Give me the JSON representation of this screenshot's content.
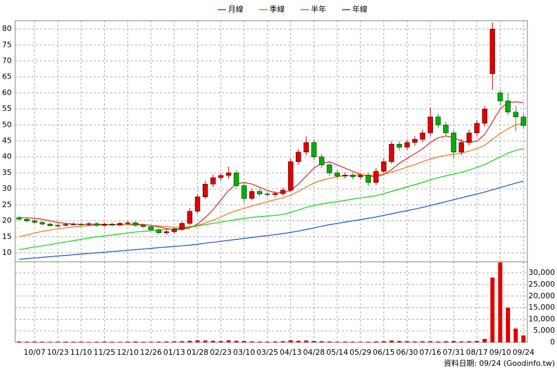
{
  "chart_data": [
    {
      "type": "candlestick",
      "categories": [
        null,
        null,
        "10/07",
        null,
        null,
        "10/23",
        null,
        null,
        "11/10",
        null,
        null,
        "11/25",
        null,
        null,
        "12/10",
        null,
        null,
        "12/26",
        null,
        null,
        "01/13",
        null,
        null,
        "01/28",
        null,
        null,
        "02/23",
        null,
        null,
        "03/10",
        null,
        null,
        "03/25",
        null,
        null,
        "04/13",
        null,
        null,
        "04/28",
        null,
        null,
        "05/14",
        null,
        null,
        "05/29",
        null,
        null,
        "06/15",
        null,
        null,
        "06/30",
        null,
        null,
        "07/16",
        null,
        null,
        "07/31",
        null,
        null,
        "08/17",
        null,
        null,
        "09/10",
        null,
        null,
        "09/24"
      ],
      "open": [
        21,
        20.5,
        20,
        19.5,
        19,
        18.5,
        18.6,
        18.9,
        19,
        18.8,
        19.1,
        18.6,
        19,
        18.7,
        19.2,
        19.4,
        18.6,
        18.2,
        17.2,
        16.3,
        16.6,
        17.4,
        19.2,
        23,
        27.5,
        31.5,
        33.5,
        34.2,
        35,
        31,
        27,
        29.2,
        28.4,
        28.2,
        28.5,
        29.6,
        38.5,
        41.5,
        44.5,
        40,
        37.5,
        35,
        34,
        34.3,
        33.8,
        34.2,
        32,
        35.5,
        38.5,
        44,
        43,
        44.5,
        45.5,
        47.5,
        52.5,
        50,
        47.5,
        41.5,
        44.5,
        47.5,
        50.5,
        66,
        60,
        57.5,
        54,
        52.5
      ],
      "high": [
        21.5,
        21,
        20.5,
        20,
        19.5,
        19.1,
        19.4,
        19.5,
        19.5,
        19.6,
        19.6,
        19.5,
        19.5,
        19.7,
        20,
        19.9,
        19.1,
        18.7,
        17.7,
        17.1,
        18,
        19.8,
        24,
        28.5,
        32.5,
        34.5,
        35,
        37,
        35.8,
        31.8,
        30,
        30,
        29.2,
        29.3,
        30.4,
        39.5,
        42.5,
        46.5,
        45.5,
        41,
        38.5,
        36,
        35.2,
        35.2,
        35,
        35,
        36.5,
        39.5,
        45,
        45,
        45.5,
        46.5,
        48.5,
        55.5,
        53.5,
        51,
        48.5,
        45.5,
        48.5,
        51.5,
        56,
        82,
        61,
        60,
        56,
        53.5
      ],
      "low": [
        20.2,
        19.6,
        19.1,
        18.6,
        18.1,
        18.1,
        18.2,
        18.5,
        18.4,
        18.4,
        18.2,
        18.2,
        18.3,
        18.3,
        18.8,
        18.2,
        17.8,
        16.8,
        15.8,
        15.7,
        16.1,
        16.9,
        18.6,
        22.2,
        26.8,
        30.5,
        32.5,
        33.2,
        30.2,
        25.8,
        26.5,
        27.6,
        27.4,
        27.4,
        27.8,
        29,
        37.5,
        40.5,
        39,
        36.5,
        34,
        33.2,
        33.2,
        33,
        33,
        30.8,
        31.2,
        34.8,
        37.8,
        42,
        42,
        43.5,
        44.5,
        46.5,
        49,
        46.5,
        39.5,
        40.5,
        43.5,
        46.5,
        49.5,
        61,
        56,
        53,
        48,
        49
      ],
      "close": [
        20.5,
        20,
        19.5,
        19,
        18.5,
        18.6,
        18.9,
        19,
        18.8,
        19.1,
        18.6,
        19,
        18.7,
        19.2,
        19.4,
        18.6,
        18.2,
        17.2,
        16.3,
        16.6,
        17.4,
        19.2,
        23,
        27.5,
        31.5,
        33.5,
        34.2,
        35,
        31,
        27,
        29.2,
        28.4,
        28.2,
        28.5,
        29.6,
        38.5,
        41.5,
        44.5,
        40,
        37.5,
        35,
        34,
        34.3,
        33.8,
        34.2,
        32,
        35.5,
        38.5,
        44,
        43,
        44.5,
        45.5,
        47.5,
        52.5,
        50,
        47.5,
        41.5,
        44.5,
        47.5,
        50.5,
        55,
        80,
        57.5,
        54,
        52.5,
        49.8
      ],
      "up_color": "#e00000",
      "down_color": "#00b000",
      "series": [
        {
          "name": "月線",
          "color": "#e02020",
          "values": [
            21,
            21,
            20.8,
            20.5,
            20,
            19.5,
            19.2,
            19,
            18.9,
            18.9,
            18.9,
            18.9,
            18.8,
            18.8,
            18.9,
            19,
            18.9,
            18.6,
            18.1,
            17.6,
            17.3,
            17.3,
            17.8,
            19,
            21,
            23.5,
            26.5,
            29.5,
            31.5,
            32,
            31.5,
            30.5,
            29.5,
            28.8,
            28.7,
            29.5,
            31.5,
            34,
            36.5,
            38,
            38.5,
            37.5,
            36.5,
            35.5,
            34.5,
            34,
            33.8,
            34.5,
            36,
            38,
            39.5,
            41,
            42.5,
            44.5,
            46,
            46.5,
            46,
            45,
            44.5,
            45,
            47,
            51,
            55,
            57,
            57.2,
            57
          ]
        },
        {
          "name": "季線",
          "color": "#f07010",
          "values": [
            15,
            15.6,
            16.2,
            16.7,
            17.1,
            17.5,
            17.8,
            18.1,
            18.3,
            18.5,
            18.6,
            18.7,
            18.7,
            18.8,
            18.8,
            18.8,
            18.7,
            18.6,
            18.4,
            18.2,
            18,
            18,
            18.2,
            18.6,
            19.3,
            20.2,
            21.2,
            22.3,
            23.2,
            23.9,
            24.6,
            25.3,
            26,
            26.6,
            27.2,
            28,
            29.2,
            30.6,
            31.8,
            32.7,
            33.3,
            33.8,
            34.1,
            34.3,
            34.4,
            34.3,
            34.3,
            34.6,
            35.2,
            36,
            36.8,
            37.6,
            38.5,
            39.3,
            40,
            40.5,
            40.8,
            41.2,
            41.8,
            42.6,
            43.6,
            45.5,
            47.3,
            48.8,
            50,
            50.5
          ]
        },
        {
          "name": "半年",
          "color": "#10d010",
          "values": [
            11,
            11.4,
            11.8,
            12.2,
            12.6,
            13,
            13.4,
            13.8,
            14.2,
            14.6,
            15,
            15.3,
            15.6,
            15.9,
            16.2,
            16.5,
            16.7,
            16.9,
            17.1,
            17.3,
            17.5,
            17.7,
            18,
            18.4,
            18.8,
            19.2,
            19.6,
            20,
            20.4,
            20.8,
            21.1,
            21.3,
            21.5,
            21.7,
            22,
            22.6,
            23.4,
            24.2,
            24.8,
            25.3,
            25.7,
            26,
            26.4,
            26.8,
            27.2,
            27.5,
            27.9,
            28.5,
            29.2,
            29.9,
            30.6,
            31.3,
            32,
            32.8,
            33.5,
            34.1,
            34.6,
            35.2,
            35.9,
            36.7,
            37.6,
            38.8,
            40,
            41.2,
            42,
            42.6
          ]
        },
        {
          "name": "年線",
          "color": "#1050c8",
          "values": [
            8,
            8.2,
            8.4,
            8.6,
            8.8,
            9,
            9.2,
            9.4,
            9.6,
            9.8,
            10,
            10.2,
            10.4,
            10.6,
            10.8,
            11,
            11.2,
            11.4,
            11.6,
            11.8,
            12,
            12.2,
            12.4,
            12.7,
            13,
            13.3,
            13.6,
            13.9,
            14.2,
            14.5,
            14.8,
            15.1,
            15.4,
            15.7,
            16,
            16.4,
            16.8,
            17.3,
            17.8,
            18.3,
            18.8,
            19.2,
            19.6,
            20,
            20.4,
            20.8,
            21.2,
            21.7,
            22.2,
            22.7,
            23.2,
            23.7,
            24.2,
            24.8,
            25.4,
            26,
            26.6,
            27.2,
            27.8,
            28.4,
            29,
            29.7,
            30.4,
            31.1,
            31.8,
            32.4
          ]
        }
      ],
      "ylim": [
        7.2,
        82.6
      ],
      "yticks": [
        10,
        15,
        20,
        25,
        30,
        35,
        40,
        45,
        50,
        55,
        60,
        65,
        70,
        75,
        80
      ],
      "grid": true
    },
    {
      "type": "bar",
      "color": "#e00000",
      "values": [
        400,
        300,
        350,
        300,
        250,
        300,
        350,
        300,
        300,
        250,
        300,
        350,
        300,
        250,
        300,
        400,
        300,
        250,
        350,
        400,
        450,
        500,
        700,
        900,
        800,
        700,
        600,
        900,
        700,
        600,
        400,
        350,
        300,
        400,
        500,
        900,
        700,
        800,
        600,
        500,
        400,
        300,
        350,
        300,
        250,
        300,
        400,
        500,
        800,
        600,
        500,
        400,
        450,
        500,
        400,
        500,
        600,
        400,
        500,
        600,
        1500,
        28000,
        34500,
        15000,
        6000,
        3000
      ],
      "ylim": [
        0,
        34800
      ],
      "yticks": [
        0,
        {
          "value": 5000,
          "label": "5,000"
        },
        {
          "value": 10000,
          "label": "10,000"
        },
        {
          "value": 15000,
          "label": "15,000"
        },
        {
          "value": 20000,
          "label": "20,000"
        },
        {
          "value": 25000,
          "label": "25,000"
        },
        {
          "value": 30000,
          "label": "30,000"
        }
      ],
      "grid": true
    }
  ],
  "footer": "資料日期: 09/24 (Goodinfo.tw)"
}
